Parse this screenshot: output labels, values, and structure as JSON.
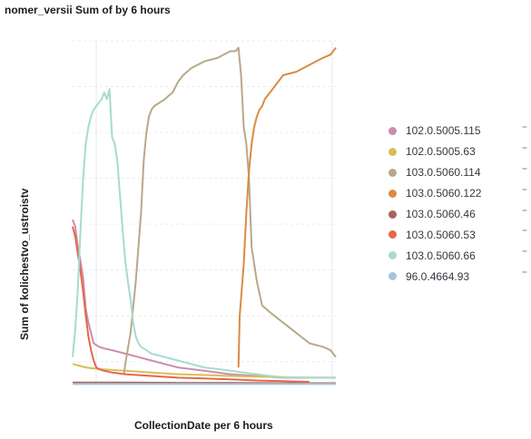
{
  "chart_data": {
    "type": "line",
    "title": "nomer_versii Sum of by 6 hours",
    "xlabel": "CollectionDate per 6 hours",
    "ylabel": "Sum of kolichestvo_ustroistv",
    "legend_position": "right",
    "grid": true,
    "x_range": [
      0,
      100
    ],
    "y_range": [
      0,
      100
    ],
    "series": [
      {
        "name": "102.0.5005.115",
        "color": "#ca8eae",
        "x": [
          0,
          1,
          2,
          3,
          4,
          5,
          6,
          8,
          10,
          12,
          15,
          20,
          25,
          30,
          35,
          40,
          50,
          60,
          70,
          80,
          90,
          100
        ],
        "y": [
          48,
          46,
          40,
          36,
          31,
          22,
          18,
          12,
          11,
          10.5,
          10,
          9,
          8,
          7,
          6,
          5,
          4,
          3,
          2.5,
          2,
          2,
          2
        ]
      },
      {
        "name": "102.0.5005.63",
        "color": "#d6bf57",
        "x": [
          0,
          5,
          10,
          20,
          30,
          40,
          50,
          60,
          70,
          80,
          90,
          100
        ],
        "y": [
          6,
          5,
          4.5,
          4,
          3.5,
          3,
          2.8,
          2.5,
          2.3,
          2.2,
          2,
          2
        ]
      },
      {
        "name": "103.0.5060.114",
        "color": "#b9a888",
        "x": [
          19.5,
          20,
          22,
          24,
          26,
          27,
          28,
          29,
          30,
          31,
          33,
          35,
          38,
          40,
          42,
          45,
          50,
          55,
          60,
          62,
          63,
          64,
          65,
          66,
          67,
          68,
          70,
          72,
          75,
          80,
          85,
          90,
          95,
          98,
          100
        ],
        "y": [
          3,
          6,
          15,
          30,
          50,
          65,
          73,
          78,
          80,
          81,
          82,
          83,
          85,
          88,
          90,
          92,
          94,
          95,
          97,
          97,
          98,
          90,
          75,
          70,
          60,
          40,
          30,
          23,
          21,
          18,
          15,
          12,
          11,
          10,
          8
        ]
      },
      {
        "name": "103.0.5060.122",
        "color": "#da8b45",
        "x": [
          63,
          63.5,
          65,
          66,
          67,
          68,
          69,
          70,
          71,
          72,
          73,
          75,
          78,
          80,
          85,
          90,
          95,
          98,
          100
        ],
        "y": [
          5,
          20,
          35,
          50,
          62,
          70,
          75,
          78,
          80,
          81,
          83,
          85,
          88,
          90,
          91,
          93,
          95,
          96,
          98
        ]
      },
      {
        "name": "103.0.5060.46",
        "color": "#aa6556",
        "x": [
          0,
          20,
          40,
          60,
          80,
          100
        ],
        "y": [
          0.6,
          0.6,
          0.5,
          0.5,
          0.4,
          0.4
        ]
      },
      {
        "name": "103.0.5060.53",
        "color": "#e7664c",
        "x": [
          0,
          1,
          2,
          3,
          4,
          5,
          6,
          7,
          8,
          9,
          10,
          12,
          15,
          20,
          30,
          40,
          50,
          60,
          70,
          80,
          90
        ],
        "y": [
          46,
          43,
          38,
          33,
          27,
          20,
          14,
          10,
          7,
          5,
          4.5,
          4,
          3.5,
          3,
          2.5,
          2,
          1.8,
          1.5,
          1.2,
          1,
          0.8
        ]
      },
      {
        "name": "103.0.5060.66",
        "color": "#a8dbcd",
        "x": [
          0,
          1,
          2,
          3,
          4,
          5,
          6,
          7,
          8,
          9,
          10,
          11,
          12,
          13,
          14,
          15,
          16,
          17,
          18,
          19,
          20,
          21,
          22,
          23,
          24,
          25,
          26,
          28,
          30,
          35,
          40,
          45,
          50,
          55,
          60,
          65,
          70,
          75,
          80,
          90,
          100
        ],
        "y": [
          8,
          16,
          28,
          45,
          60,
          70,
          75,
          78,
          80,
          81,
          82,
          83,
          85,
          83,
          86,
          72,
          70,
          65,
          55,
          45,
          36,
          30,
          25,
          18,
          14,
          12,
          11,
          10,
          9,
          8,
          7,
          6,
          5,
          4.5,
          4,
          3.5,
          3,
          2.5,
          2.2,
          2,
          2
        ]
      },
      {
        "name": "96.0.4664.93",
        "color": "#a4c3dc",
        "x": [
          0,
          20,
          40,
          60,
          80,
          100
        ],
        "y": [
          0.2,
          0.2,
          0.2,
          0.2,
          0.2,
          0.2
        ]
      }
    ]
  }
}
